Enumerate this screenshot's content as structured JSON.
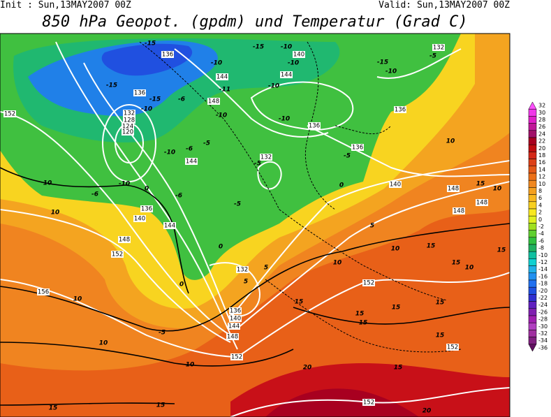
{
  "header": {
    "init": "Init : Sun,13MAY2007 00Z",
    "valid": "Valid: Sun,13MAY2007 00Z",
    "title": "850 hPa Geopot. (gpdm) und Temperatur (Grad C)"
  },
  "legend": {
    "labels": [
      32,
      30,
      28,
      26,
      24,
      22,
      20,
      18,
      16,
      14,
      12,
      10,
      8,
      6,
      4,
      2,
      0,
      -2,
      -4,
      -6,
      -8,
      -10,
      -12,
      -14,
      -16,
      -18,
      -20,
      -22,
      -24,
      -26,
      -28,
      -30,
      -32,
      -34,
      -36
    ],
    "colors": [
      "#ff50ff",
      "#f038e8",
      "#e020c8",
      "#c01898",
      "#a01068",
      "#a80020",
      "#c00c10",
      "#d42818",
      "#dc4018",
      "#e45818",
      "#ec7018",
      "#f08820",
      "#f4a020",
      "#f8b820",
      "#f8d020",
      "#f8e820",
      "#e0f020",
      "#a0e020",
      "#60d030",
      "#30c040",
      "#20b060",
      "#10c0a0",
      "#10d0d0",
      "#20b0e8",
      "#2090f0",
      "#2070f0",
      "#2050e0",
      "#3030d0",
      "#6020c0",
      "#8020b0",
      "#a020b0",
      "#b040c0",
      "#a030a0",
      "#802080",
      "#601060"
    ]
  },
  "contour_labels": [
    "-15",
    "136",
    "-15",
    "-10",
    "140",
    "-10",
    "-10",
    "144",
    "144",
    "-11",
    "-10",
    "-15",
    "136",
    "-15",
    "-10",
    "-6",
    "148",
    "-10",
    "-10",
    "132",
    "128",
    "124",
    "120",
    "-10",
    "-6",
    "-5",
    "144",
    "132",
    "-5",
    "136",
    "136",
    "-5",
    "152",
    "-15",
    "-10",
    "132",
    "-5",
    "136",
    "10",
    "-10",
    "-6",
    "0",
    "-6",
    "10",
    "136",
    "140",
    "144",
    "10",
    "148",
    "152",
    "0",
    "-5",
    "0",
    "140",
    "148",
    "15",
    "10",
    "148",
    "148",
    "5",
    "10",
    "10",
    "15",
    "15",
    "10",
    "15",
    "132",
    "5",
    "5",
    "0",
    "152",
    "156",
    "10",
    "15",
    "136",
    "140",
    "144",
    "148",
    "-5",
    "10",
    "15",
    "15",
    "15",
    "15",
    "15",
    "152",
    "152",
    "10",
    "20",
    "15",
    "15",
    "15",
    "152",
    "20"
  ]
}
